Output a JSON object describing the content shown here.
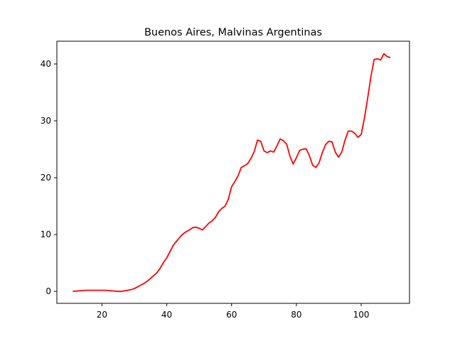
{
  "chart_data": {
    "type": "line",
    "title": "Buenos Aires, Malvinas Argentinas",
    "xlabel": "",
    "ylabel": "",
    "xlim": [
      6.1,
      114.9
    ],
    "ylim": [
      -2.1,
      44.0
    ],
    "x_ticks": [
      20,
      40,
      60,
      80,
      100
    ],
    "y_ticks": [
      0,
      10,
      20,
      30,
      40
    ],
    "grid": false,
    "series": [
      {
        "color": "#ff0000",
        "x": [
          11,
          12,
          13,
          14,
          15,
          16,
          17,
          18,
          19,
          20,
          21,
          22,
          23,
          24,
          25,
          26,
          27,
          28,
          29,
          30,
          31,
          32,
          33,
          34,
          35,
          36,
          37,
          38,
          39,
          40,
          41,
          42,
          43,
          44,
          45,
          46,
          47,
          48,
          49,
          50,
          51,
          52,
          53,
          54,
          55,
          56,
          57,
          58,
          59,
          60,
          61,
          62,
          63,
          64,
          65,
          66,
          67,
          68,
          69,
          70,
          71,
          72,
          73,
          74,
          75,
          76,
          77,
          78,
          79,
          80,
          81,
          82,
          83,
          84,
          85,
          86,
          87,
          88,
          89,
          90,
          91,
          92,
          93,
          94,
          95,
          96,
          97,
          98,
          99,
          100,
          101,
          102,
          103,
          104,
          105,
          106,
          107,
          108,
          109
        ],
        "y": [
          0,
          0.05,
          0.1,
          0.15,
          0.2,
          0.2,
          0.2,
          0.2,
          0.2,
          0.2,
          0.2,
          0.15,
          0.1,
          0.05,
          0.0,
          0.0,
          0.1,
          0.2,
          0.3,
          0.5,
          0.8,
          1.1,
          1.4,
          1.8,
          2.3,
          2.8,
          3.3,
          4.1,
          5.1,
          5.9,
          7.0,
          8.1,
          8.8,
          9.5,
          10.1,
          10.5,
          10.8,
          11.2,
          11.3,
          11.1,
          10.8,
          11.4,
          12.0,
          12.4,
          13.0,
          14.0,
          14.6,
          15.0,
          16.2,
          18.4,
          19.3,
          20.3,
          21.8,
          22.1,
          22.5,
          23.4,
          24.6,
          26.6,
          26.4,
          24.7,
          24.4,
          24.7,
          24.5,
          25.6,
          26.8,
          26.5,
          25.9,
          23.8,
          22.4,
          23.5,
          24.8,
          25.0,
          25.1,
          23.9,
          22.2,
          21.8,
          22.6,
          24.4,
          25.8,
          26.4,
          26.3,
          24.5,
          23.6,
          24.5,
          26.6,
          28.2,
          28.2,
          27.8,
          27.1,
          27.6,
          30.5,
          34.0,
          37.8,
          40.8,
          40.9,
          40.7,
          41.8,
          41.3,
          41.1
        ]
      }
    ]
  }
}
